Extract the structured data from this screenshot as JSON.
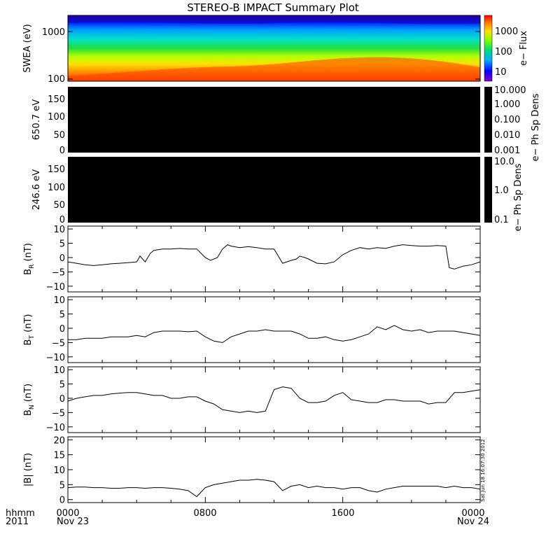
{
  "title": "STEREO-B IMPACT Summary Plot",
  "stamp": "Sat Jun 18 16:07:30 2012",
  "x_axis": {
    "row1_label": "hhmm",
    "row2_label": "2011",
    "ticks": [
      "0000",
      "0800",
      "1600",
      "0000"
    ],
    "dates": [
      "Nov 23",
      "Nov 24"
    ]
  },
  "chart_data": [
    {
      "type": "heatmap",
      "panel": "swea",
      "ylabel": "SWEA (eV)",
      "yscale": "log",
      "ylim": [
        90,
        2200
      ],
      "y_ticks": [
        "1000",
        "100"
      ],
      "colorbar_label": "e− Flux",
      "colorbar_scale": "log",
      "colorbar_ticks": [
        "1000",
        "100",
        "10"
      ],
      "colormap": "rainbow (blue low, red high)"
    },
    {
      "type": "heatmap",
      "panel": "pad650",
      "ylabel": "650.7 eV",
      "ylim": [
        0,
        180
      ],
      "y_ticks": [
        "150",
        "100",
        "50",
        "0"
      ],
      "fill_color": "#000000",
      "colorbar_label": "e− Ph Sp Dens",
      "colorbar_scale": "log",
      "colorbar_ticks": [
        "10.000",
        "1.000",
        "0.100",
        "0.010",
        "0.001"
      ]
    },
    {
      "type": "heatmap",
      "panel": "pad246",
      "ylabel": "246.6 eV",
      "ylim": [
        0,
        180
      ],
      "y_ticks": [
        "150",
        "100",
        "50",
        "0"
      ],
      "fill_color": "#000000",
      "colorbar_label": "e− Ph Sp Dens",
      "colorbar_scale": "log",
      "colorbar_ticks": [
        "10.0",
        "1.0",
        "0.1"
      ]
    },
    {
      "type": "line",
      "panel": "br",
      "ylabel_main": "B",
      "ylabel_sub": "R",
      "ylabel_unit": " (nT)",
      "ylim": [
        -12,
        11
      ],
      "y_ticks": [
        "10",
        "5",
        "0",
        "−5",
        "−10"
      ],
      "x": [
        0,
        0.5,
        1,
        1.5,
        2,
        2.5,
        3,
        3.5,
        4,
        4.2,
        4.5,
        4.8,
        5,
        5.5,
        6,
        6.5,
        7,
        7.5,
        8,
        8.3,
        8.7,
        9,
        9.3,
        9.5,
        10,
        10.5,
        11,
        11.5,
        12,
        12.5,
        13,
        13.3,
        13.5,
        13.8,
        14,
        14.5,
        15,
        15.5,
        16,
        16.5,
        17,
        17.5,
        18,
        18.5,
        19,
        19.5,
        20,
        20.5,
        21,
        21.5,
        22,
        22.2,
        22.5,
        23,
        23.5,
        24
      ],
      "y": [
        -1.5,
        -2,
        -2.5,
        -2.8,
        -2.5,
        -2.2,
        -2,
        -1.8,
        -1.5,
        0.5,
        -1.5,
        1.5,
        2.5,
        3,
        3,
        3.2,
        3,
        3,
        0,
        -1,
        0,
        3,
        4.5,
        4,
        3.5,
        3.8,
        3.5,
        3,
        3,
        -2,
        -1,
        -0.5,
        0.5,
        0,
        -0.5,
        -2,
        -2.2,
        -1.5,
        1,
        2.5,
        3.5,
        3,
        3.5,
        3.2,
        4,
        4.5,
        4.2,
        4,
        4,
        4.2,
        4,
        -3.5,
        -4,
        -3,
        -2.5,
        -1.5
      ]
    },
    {
      "type": "line",
      "panel": "bt",
      "ylabel_main": "B",
      "ylabel_sub": "T",
      "ylabel_unit": " (nT)",
      "ylim": [
        -12,
        11
      ],
      "y_ticks": [
        "10",
        "5",
        "0",
        "−5",
        "−10"
      ],
      "x": [
        0,
        0.5,
        1,
        1.5,
        2,
        2.5,
        3,
        3.5,
        4,
        4.5,
        5,
        5.5,
        6,
        6.5,
        7,
        7.5,
        8,
        8.5,
        9,
        9.5,
        10,
        10.5,
        11,
        11.5,
        12,
        12.5,
        13,
        13.5,
        14,
        14.5,
        15,
        15.5,
        16,
        16.5,
        17,
        17.5,
        18,
        18.5,
        19,
        19.5,
        20,
        20.5,
        21,
        21.5,
        22,
        22.5,
        23,
        23.5,
        24
      ],
      "y": [
        -4,
        -4,
        -3.5,
        -3.5,
        -3.5,
        -3,
        -3,
        -3,
        -2.5,
        -3,
        -1.5,
        -1,
        -1,
        -1,
        -1.2,
        -1,
        -3,
        -4.5,
        -5,
        -3,
        -2,
        -1,
        -1,
        -0.5,
        -1,
        -1,
        -1,
        -2,
        -3.5,
        -3.5,
        -3,
        -4,
        -4.5,
        -4,
        -3,
        -2,
        0.5,
        -0.5,
        1,
        -0.5,
        -1,
        -0.5,
        -1.5,
        -1,
        -1,
        -1,
        -1.5,
        -2,
        -2.5
      ]
    },
    {
      "type": "line",
      "panel": "bn",
      "ylabel_main": "B",
      "ylabel_sub": "N",
      "ylabel_unit": " (nT)",
      "ylim": [
        -12,
        11
      ],
      "y_ticks": [
        "5",
        "0",
        "−5",
        "−10",
        "10"
      ],
      "x": [
        0,
        0.5,
        1,
        1.5,
        2,
        2.5,
        3,
        3.5,
        4,
        4.5,
        5,
        5.5,
        6,
        6.5,
        7,
        7.5,
        8,
        8.5,
        9,
        9.5,
        10,
        10.5,
        11,
        11.5,
        12,
        12.5,
        13,
        13.5,
        14,
        14.5,
        15,
        15.5,
        16,
        16.5,
        17,
        17.5,
        18,
        18.5,
        19,
        19.5,
        20,
        20.5,
        21,
        21.5,
        22,
        22.5,
        23,
        23.5,
        24
      ],
      "y": [
        -1,
        0,
        0.5,
        1,
        1,
        1.5,
        1.8,
        2,
        2,
        1.5,
        1,
        1,
        0,
        0,
        0.5,
        0.5,
        -1,
        -2,
        -4,
        -4.5,
        -5,
        -4.5,
        -5,
        -4.5,
        3,
        4,
        3.5,
        0,
        -1.5,
        -1.5,
        -1,
        1,
        2,
        -0.5,
        -1,
        -1.5,
        -1.5,
        -0.5,
        -0.5,
        -1,
        -1,
        -1,
        -2,
        -1.5,
        -1.5,
        2,
        2,
        2.5,
        3
      ]
    },
    {
      "type": "line",
      "panel": "bmag",
      "ylabel_main": "|B|",
      "ylabel_sub": "",
      "ylabel_unit": " (nT)",
      "ylim": [
        -1,
        21
      ],
      "y_ticks": [
        "20",
        "15",
        "10",
        "5",
        "0"
      ],
      "x": [
        0,
        0.5,
        1,
        1.5,
        2,
        2.5,
        3,
        3.5,
        4,
        4.5,
        5,
        5.5,
        6,
        6.5,
        7,
        7.5,
        8,
        8.5,
        9,
        9.5,
        10,
        10.5,
        11,
        11.5,
        12,
        12.5,
        13,
        13.5,
        14,
        14.5,
        15,
        15.5,
        16,
        16.5,
        17,
        17.5,
        18,
        18.5,
        19,
        19.5,
        20,
        20.5,
        21,
        21.5,
        22,
        22.5,
        23,
        23.5,
        24
      ],
      "y": [
        4,
        4.2,
        4.2,
        4,
        4,
        3.8,
        3.8,
        4,
        4,
        3.8,
        4,
        4,
        3.8,
        3.5,
        3,
        1,
        4,
        5,
        5.5,
        6,
        6.5,
        6.5,
        6.8,
        6.5,
        6,
        3,
        4.5,
        5,
        4,
        4.5,
        4,
        4,
        3.5,
        4,
        4,
        3,
        2.5,
        3.5,
        4,
        4.5,
        4.5,
        4.5,
        4.5,
        4.5,
        4,
        4.5,
        4,
        4,
        3.5
      ]
    }
  ]
}
